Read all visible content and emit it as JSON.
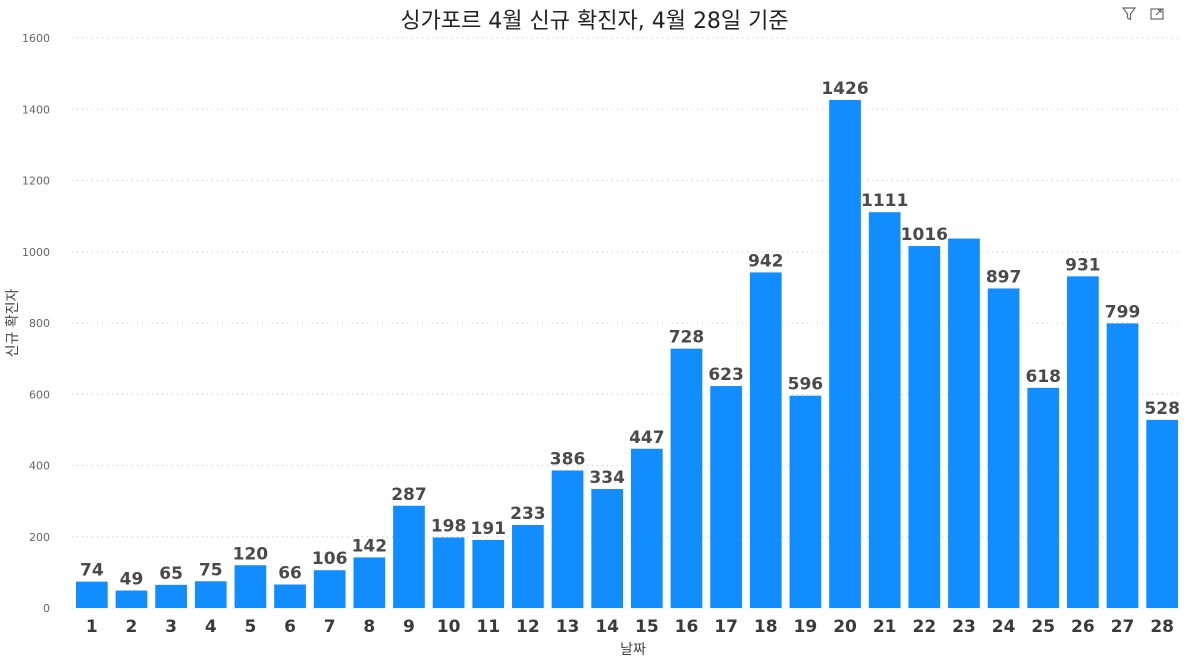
{
  "window": {
    "title": "싱가포르 4월 신규 확진자, 4월 28일 기준",
    "icons": [
      "filter-icon",
      "focus-mode-icon"
    ]
  },
  "chart_data": {
    "type": "bar",
    "title": "싱가포르 4월 신규 확진자, 4월 28일 기준",
    "xlabel": "날짜",
    "ylabel": "신규 확진자",
    "ylim": [
      0,
      1600
    ],
    "yticks": [
      0,
      200,
      400,
      600,
      800,
      1000,
      1200,
      1400,
      1600
    ],
    "grid": true,
    "bar_color": "#118dff",
    "categories": [
      "1",
      "2",
      "3",
      "4",
      "5",
      "6",
      "7",
      "8",
      "9",
      "10",
      "11",
      "12",
      "13",
      "14",
      "15",
      "16",
      "17",
      "18",
      "19",
      "20",
      "21",
      "22",
      "23",
      "24",
      "25",
      "26",
      "27",
      "28"
    ],
    "values": [
      74,
      49,
      65,
      75,
      120,
      66,
      106,
      142,
      287,
      198,
      191,
      233,
      386,
      334,
      447,
      728,
      623,
      942,
      596,
      1426,
      1111,
      1016,
      1037,
      897,
      618,
      931,
      799,
      528
    ],
    "data_labels": [
      "74",
      "49",
      "65",
      "75",
      "120",
      "66",
      "106",
      "142",
      "287",
      "198",
      "191",
      "233",
      "386",
      "334",
      "447",
      "728",
      "623",
      "942",
      "596",
      "1426",
      "1111",
      "1016",
      "",
      "897",
      "618",
      "931",
      "799",
      "528"
    ]
  }
}
